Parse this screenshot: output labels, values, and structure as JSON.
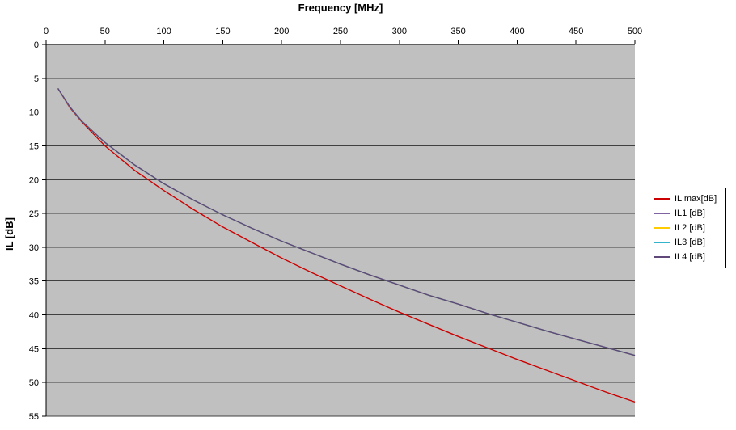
{
  "title": "Frequency [MHz]",
  "y_axis_label": "IL [dB]",
  "chart_data": {
    "type": "line",
    "title": "Frequency [MHz]",
    "xlabel": "Frequency [MHz]",
    "ylabel": "IL [dB]",
    "x_axis": {
      "min": 0,
      "max": 500,
      "tick_step": 50,
      "position": "top",
      "tick_labels": [
        "0",
        "50",
        "100",
        "150",
        "200",
        "250",
        "300",
        "350",
        "400",
        "450",
        "500"
      ]
    },
    "y_axis": {
      "min": 0,
      "max": 55,
      "tick_step": 5,
      "inverted": true,
      "tick_labels": [
        "0",
        "5",
        "10",
        "15",
        "20",
        "25",
        "30",
        "35",
        "40",
        "45",
        "50",
        "55"
      ]
    },
    "gridlines": "horizontal",
    "plot_area_color": "#c0c0c0",
    "gridline_color": "#404040",
    "axis_color": "#000000",
    "legend_position": "right",
    "x": [
      10,
      20,
      30,
      50,
      75,
      100,
      125,
      150,
      175,
      200,
      225,
      250,
      275,
      300,
      325,
      350,
      375,
      400,
      425,
      450,
      475,
      500
    ],
    "series": [
      {
        "name": "IL max[dB]",
        "color": "#cc0000",
        "values": [
          6.5,
          9.3,
          11.4,
          15.0,
          18.6,
          21.6,
          24.4,
          27.0,
          29.3,
          31.6,
          33.7,
          35.7,
          37.7,
          39.6,
          41.4,
          43.2,
          44.9,
          46.6,
          48.2,
          49.8,
          51.4,
          52.9
        ]
      },
      {
        "name": "IL1 [dB]",
        "color": "#8064a2",
        "values": [
          6.5,
          9.2,
          11.3,
          14.5,
          17.8,
          20.6,
          23.0,
          25.2,
          27.2,
          29.1,
          30.8,
          32.5,
          34.1,
          35.6,
          37.1,
          38.4,
          39.8,
          41.1,
          42.4,
          43.6,
          44.8,
          46.0
        ]
      },
      {
        "name": "IL2 [dB]",
        "color": "#ffcc00",
        "values": [
          6.5,
          9.2,
          11.3,
          14.5,
          17.8,
          20.6,
          23.0,
          25.2,
          27.2,
          29.1,
          30.8,
          32.5,
          34.1,
          35.6,
          37.1,
          38.4,
          39.8,
          41.1,
          42.4,
          43.6,
          44.8,
          46.0
        ]
      },
      {
        "name": "IL3 [dB]",
        "color": "#33b3cc",
        "values": [
          6.5,
          9.2,
          11.3,
          14.5,
          17.8,
          20.6,
          23.0,
          25.2,
          27.2,
          29.1,
          30.8,
          32.5,
          34.1,
          35.6,
          37.1,
          38.4,
          39.8,
          41.1,
          42.4,
          43.6,
          44.8,
          46.0
        ]
      },
      {
        "name": "IL4 [dB]",
        "color": "#60497a",
        "values": [
          6.5,
          9.2,
          11.3,
          14.5,
          17.8,
          20.6,
          23.0,
          25.2,
          27.2,
          29.1,
          30.8,
          32.5,
          34.1,
          35.6,
          37.1,
          38.4,
          39.8,
          41.1,
          42.4,
          43.6,
          44.8,
          46.0
        ]
      }
    ]
  }
}
